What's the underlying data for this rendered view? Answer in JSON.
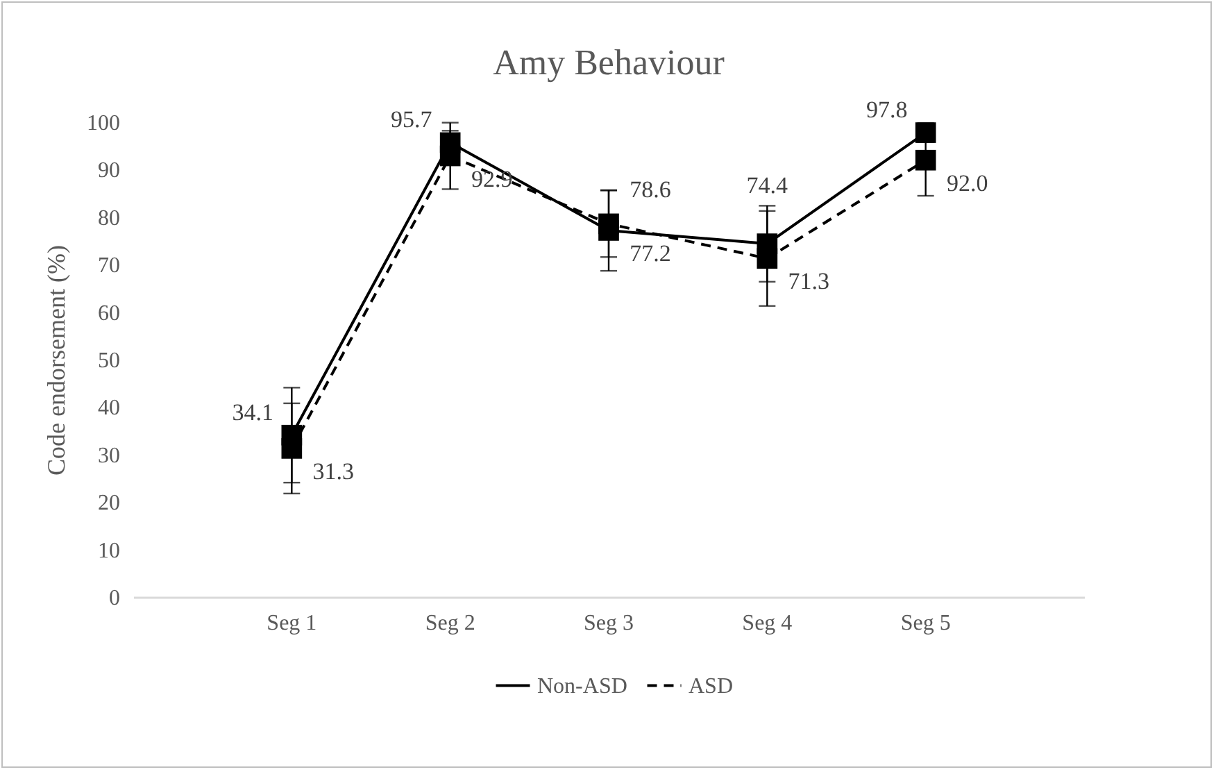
{
  "chart_data": {
    "type": "line",
    "title": "Amy Behaviour",
    "ylabel": "Code endorsement (%)",
    "categories": [
      "Seg 1",
      "Seg 2",
      "Seg 3",
      "Seg 4",
      "Seg 5"
    ],
    "series": [
      {
        "name": "Non-ASD",
        "color": "#000000",
        "line_style": "solid",
        "values": [
          34.1,
          95.7,
          77.2,
          74.4,
          97.8
        ],
        "value_labels": [
          "34.1",
          "95.7",
          "77.2",
          "74.4",
          "97.8"
        ],
        "errors": [
          10,
          2.5,
          8.5,
          8,
          2
        ]
      },
      {
        "name": "ASD",
        "color": "#000000",
        "line_style": "dashed",
        "values": [
          31.3,
          92.9,
          78.6,
          71.3,
          92.0
        ],
        "value_labels": [
          "31.3",
          "92.9",
          "78.6",
          "71.3",
          "92.0"
        ],
        "errors": [
          9.5,
          7,
          7,
          10,
          7.5
        ]
      }
    ],
    "ylim": [
      0,
      100
    ],
    "yticks": [
      0,
      10,
      20,
      30,
      40,
      50,
      60,
      70,
      80,
      90,
      100
    ],
    "marker": "square",
    "data_labels": true,
    "legend": "bottom"
  }
}
